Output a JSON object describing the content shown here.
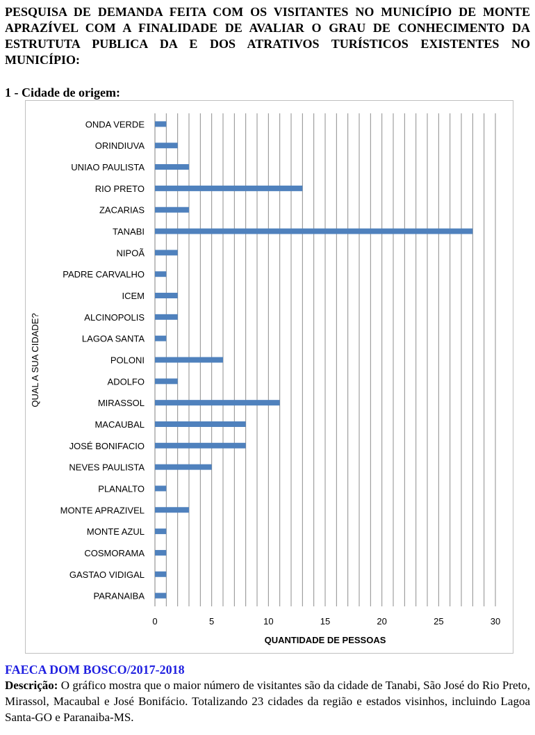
{
  "document": {
    "title": "PESQUISA DE DEMANDA FEITA COM OS VISITANTES NO MUNICÍPIO DE MONTE APRAZÍVEL COM A FINALIDADE DE AVALIAR O GRAU DE CONHECIMENTO DA ESTRUTUTA PUBLICA DA E DOS ATRATIVOS TURÍSTICOS EXISTENTES NO MUNICÍPIO:",
    "section_title": "1 - Cidade de origem:",
    "organization": "FAECA DOM BOSCO/2017-2018",
    "description_label": "Descrição:",
    "description_text": " O gráfico mostra que o maior número de visitantes são da cidade de Tanabi, São José do Rio Preto, Mirassol, Macaubal e José Bonifácio. Totalizando 23 cidades da região e estados visinhos, incluindo Lagoa Santa-GO e Paranaiba-MS."
  },
  "chart_data": {
    "type": "bar",
    "orientation": "horizontal",
    "categories": [
      "ONDA VERDE",
      "ORINDIUVA",
      "UNIAO PAULISTA",
      "RIO PRETO",
      "ZACARIAS",
      "TANABI",
      "NIPOÃ",
      "PADRE CARVALHO",
      "ICEM",
      "ALCINOPOLIS",
      "LAGOA SANTA",
      "POLONI",
      "ADOLFO",
      "MIRASSOL",
      "MACAUBAL",
      "JOSÉ BONIFACIO",
      "NEVES PAULISTA",
      "PLANALTO",
      "MONTE APRAZIVEL",
      "MONTE AZUL",
      "COSMORAMA",
      "GASTAO VIDIGAL",
      "PARANAIBA"
    ],
    "values": [
      1,
      2,
      3,
      13,
      3,
      28,
      2,
      1,
      2,
      2,
      1,
      6,
      2,
      11,
      8,
      8,
      5,
      1,
      3,
      1,
      1,
      1,
      1
    ],
    "xlabel": "QUANTIDADE DE PESSOAS",
    "ylabel": "QUAL A SUA CIDADE?",
    "xlim": [
      0,
      30
    ],
    "xticks": [
      0,
      5,
      10,
      15,
      20,
      25,
      30
    ],
    "grid": "vertical lines at each unit",
    "bar_color": "#4f81bd"
  }
}
